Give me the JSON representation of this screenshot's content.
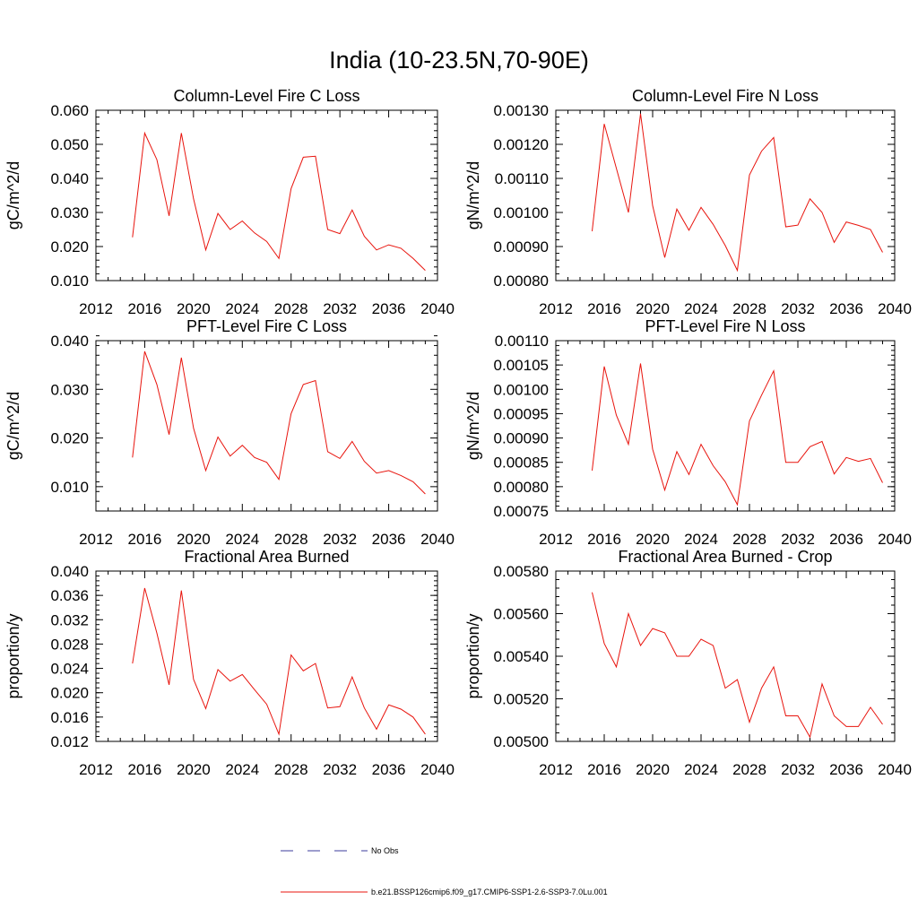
{
  "figure_title": "India (10-23.5N,70-90E)",
  "legend": {
    "obs_label": "No Obs",
    "model_label": "b.e21.BSSP126cmip6.f09_g17.CMIP6-SSP1-2.6-SSP3-7.0Lu.001",
    "obs_color": "#3b3b9c",
    "model_color": "#e8140d"
  },
  "chart_data": [
    {
      "type": "line",
      "title": "Column-Level Fire C Loss",
      "ylabel": "gC/m^2/d",
      "xlim": [
        2012,
        2040
      ],
      "xticks": [
        "2012",
        "2016",
        "2020",
        "2024",
        "2028",
        "2032",
        "2036",
        "2040"
      ],
      "ylim": [
        0.01,
        0.06
      ],
      "yticks": [
        "0.010",
        "0.020",
        "0.030",
        "0.040",
        "0.050",
        "0.060"
      ],
      "x": [
        2015,
        2016,
        2017,
        2018,
        2019,
        2020,
        2021,
        2022,
        2023,
        2024,
        2025,
        2026,
        2027,
        2028,
        2029,
        2030,
        2031,
        2032,
        2033,
        2034,
        2035,
        2036,
        2037,
        2038,
        2039
      ],
      "series": [
        {
          "values": [
            0.0227,
            0.0533,
            0.0455,
            0.029,
            0.0533,
            0.034,
            0.019,
            0.0297,
            0.025,
            0.0275,
            0.024,
            0.0215,
            0.0165,
            0.037,
            0.0462,
            0.0465,
            0.025,
            0.0238,
            0.0307,
            0.023,
            0.019,
            0.0205,
            0.0195,
            0.0165,
            0.013
          ]
        }
      ]
    },
    {
      "type": "line",
      "title": "Column-Level Fire N Loss",
      "ylabel": "gN/m^2/d",
      "xlim": [
        2012,
        2040
      ],
      "xticks": [
        "2012",
        "2016",
        "2020",
        "2024",
        "2028",
        "2032",
        "2036",
        "2040"
      ],
      "ylim": [
        0.0008,
        0.0013
      ],
      "yticks": [
        "0.00080",
        "0.00090",
        "0.00100",
        "0.00110",
        "0.00120",
        "0.00130"
      ],
      "x": [
        2015,
        2016,
        2017,
        2018,
        2019,
        2020,
        2021,
        2022,
        2023,
        2024,
        2025,
        2026,
        2027,
        2028,
        2029,
        2030,
        2031,
        2032,
        2033,
        2034,
        2035,
        2036,
        2037,
        2038,
        2039
      ],
      "series": [
        {
          "values": [
            0.000945,
            0.00126,
            0.00113,
            0.001,
            0.00129,
            0.00102,
            0.000868,
            0.00101,
            0.000948,
            0.001015,
            0.000965,
            0.000903,
            0.00083,
            0.00111,
            0.00118,
            0.00122,
            0.000958,
            0.000963,
            0.00104,
            0.001,
            0.000912,
            0.000972,
            0.000962,
            0.00095,
            0.000883
          ]
        }
      ]
    },
    {
      "type": "line",
      "title": "PFT-Level Fire C Loss",
      "ylabel": "gC/m^2/d",
      "xlim": [
        2012,
        2040
      ],
      "xticks": [
        "2012",
        "2016",
        "2020",
        "2024",
        "2028",
        "2032",
        "2036",
        "2040"
      ],
      "ylim": [
        0.005,
        0.04
      ],
      "yticks": [
        "0.010",
        "0.020",
        "0.030",
        "0.040"
      ],
      "x": [
        2015,
        2016,
        2017,
        2018,
        2019,
        2020,
        2021,
        2022,
        2023,
        2024,
        2025,
        2026,
        2027,
        2028,
        2029,
        2030,
        2031,
        2032,
        2033,
        2034,
        2035,
        2036,
        2037,
        2038,
        2039
      ],
      "series": [
        {
          "values": [
            0.016,
            0.0378,
            0.031,
            0.0207,
            0.0365,
            0.022,
            0.0133,
            0.0202,
            0.0163,
            0.0185,
            0.016,
            0.015,
            0.0115,
            0.025,
            0.031,
            0.0318,
            0.0172,
            0.0158,
            0.0193,
            0.0152,
            0.0128,
            0.0133,
            0.0123,
            0.011,
            0.0085
          ]
        }
      ]
    },
    {
      "type": "line",
      "title": "PFT-Level Fire N Loss",
      "ylabel": "gN/m^2/d",
      "xlim": [
        2012,
        2040
      ],
      "xticks": [
        "2012",
        "2016",
        "2020",
        "2024",
        "2028",
        "2032",
        "2036",
        "2040"
      ],
      "ylim": [
        0.00075,
        0.0011
      ],
      "yticks": [
        "0.00075",
        "0.00080",
        "0.00085",
        "0.00090",
        "0.00095",
        "0.00100",
        "0.00105",
        "0.00110"
      ],
      "x": [
        2015,
        2016,
        2017,
        2018,
        2019,
        2020,
        2021,
        2022,
        2023,
        2024,
        2025,
        2026,
        2027,
        2028,
        2029,
        2030,
        2031,
        2032,
        2033,
        2034,
        2035,
        2036,
        2037,
        2038,
        2039
      ],
      "series": [
        {
          "values": [
            0.000833,
            0.001047,
            0.000947,
            0.000887,
            0.001053,
            0.000877,
            0.000793,
            0.000872,
            0.000825,
            0.000887,
            0.000843,
            0.00081,
            0.000763,
            0.000935,
            0.000988,
            0.001038,
            0.00085,
            0.00085,
            0.000882,
            0.000893,
            0.000826,
            0.00086,
            0.000852,
            0.000858,
            0.000808
          ]
        }
      ]
    },
    {
      "type": "line",
      "title": "Fractional Area Burned",
      "ylabel": "proportion/y",
      "xlim": [
        2012,
        2040
      ],
      "xticks": [
        "2012",
        "2016",
        "2020",
        "2024",
        "2028",
        "2032",
        "2036",
        "2040"
      ],
      "ylim": [
        0.012,
        0.04
      ],
      "yticks": [
        "0.012",
        "0.016",
        "0.020",
        "0.024",
        "0.028",
        "0.032",
        "0.036",
        "0.040"
      ],
      "x": [
        2015,
        2016,
        2017,
        2018,
        2019,
        2020,
        2021,
        2022,
        2023,
        2024,
        2025,
        2026,
        2027,
        2028,
        2029,
        2030,
        2031,
        2032,
        2033,
        2034,
        2035,
        2036,
        2037,
        2038,
        2039
      ],
      "series": [
        {
          "values": [
            0.0248,
            0.0372,
            0.0298,
            0.0213,
            0.0368,
            0.0222,
            0.0174,
            0.0238,
            0.0219,
            0.023,
            0.0205,
            0.0181,
            0.0132,
            0.0262,
            0.0236,
            0.0248,
            0.0175,
            0.0177,
            0.0226,
            0.0175,
            0.014,
            0.018,
            0.0173,
            0.016,
            0.0132
          ]
        }
      ]
    },
    {
      "type": "line",
      "title": "Fractional Area Burned - Crop",
      "ylabel": "proportion/y",
      "xlim": [
        2012,
        2040
      ],
      "xticks": [
        "2012",
        "2016",
        "2020",
        "2024",
        "2028",
        "2032",
        "2036",
        "2040"
      ],
      "ylim": [
        0.005,
        0.0058
      ],
      "yticks": [
        "0.00500",
        "0.00520",
        "0.00540",
        "0.00560",
        "0.00580"
      ],
      "x": [
        2015,
        2016,
        2017,
        2018,
        2019,
        2020,
        2021,
        2022,
        2023,
        2024,
        2025,
        2026,
        2027,
        2028,
        2029,
        2030,
        2031,
        2032,
        2033,
        2034,
        2035,
        2036,
        2037,
        2038,
        2039
      ],
      "series": [
        {
          "values": [
            0.0057,
            0.00546,
            0.00535,
            0.0056,
            0.00545,
            0.00553,
            0.00551,
            0.0054,
            0.0054,
            0.00548,
            0.00545,
            0.00525,
            0.00529,
            0.00509,
            0.00525,
            0.00535,
            0.00512,
            0.00512,
            0.00502,
            0.00527,
            0.00512,
            0.00507,
            0.00507,
            0.00516,
            0.00508
          ]
        }
      ]
    }
  ]
}
